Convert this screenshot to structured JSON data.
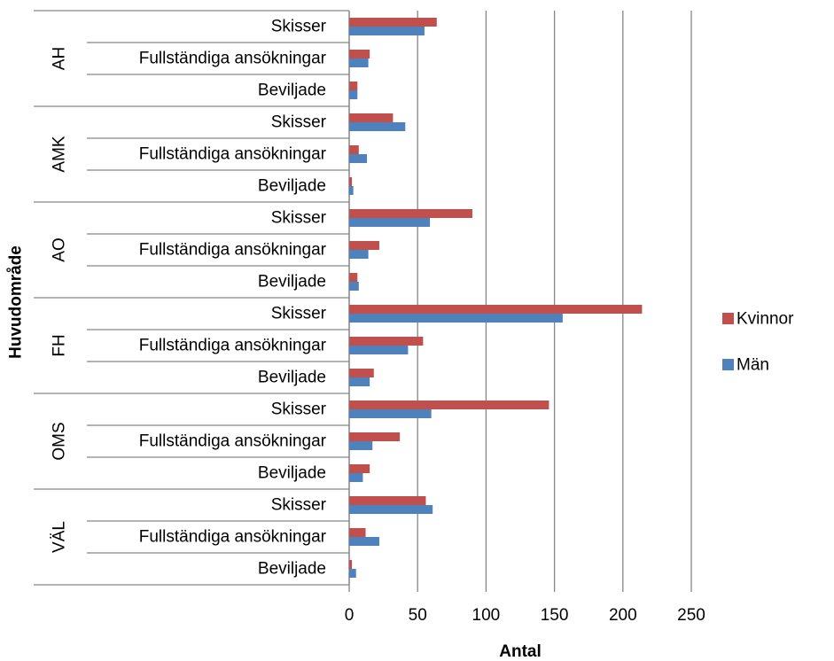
{
  "chart_data": {
    "type": "bar",
    "orientation": "horizontal",
    "xlabel": "Antal",
    "ylabel": "Huvudområde",
    "xlim": [
      0,
      250
    ],
    "xticks": [
      0,
      50,
      100,
      150,
      200,
      250
    ],
    "grid": true,
    "legend_position": "right",
    "groups": [
      "AH",
      "AMK",
      "AO",
      "FH",
      "OMS",
      "VÄL"
    ],
    "subcategories": [
      "Skisser",
      "Fullständiga ansökningar",
      "Beviljade"
    ],
    "series": [
      {
        "name": "Kvinnor",
        "color": "#c0504d",
        "values": [
          [
            64,
            15,
            6
          ],
          [
            32,
            7,
            2
          ],
          [
            90,
            22,
            6
          ],
          [
            214,
            54,
            18
          ],
          [
            146,
            37,
            15
          ],
          [
            56,
            12,
            2
          ]
        ]
      },
      {
        "name": "Män",
        "color": "#4f81bd",
        "values": [
          [
            55,
            14,
            6
          ],
          [
            41,
            13,
            3
          ],
          [
            59,
            14,
            7
          ],
          [
            156,
            43,
            15
          ],
          [
            60,
            17,
            10
          ],
          [
            61,
            22,
            5
          ]
        ]
      }
    ]
  }
}
